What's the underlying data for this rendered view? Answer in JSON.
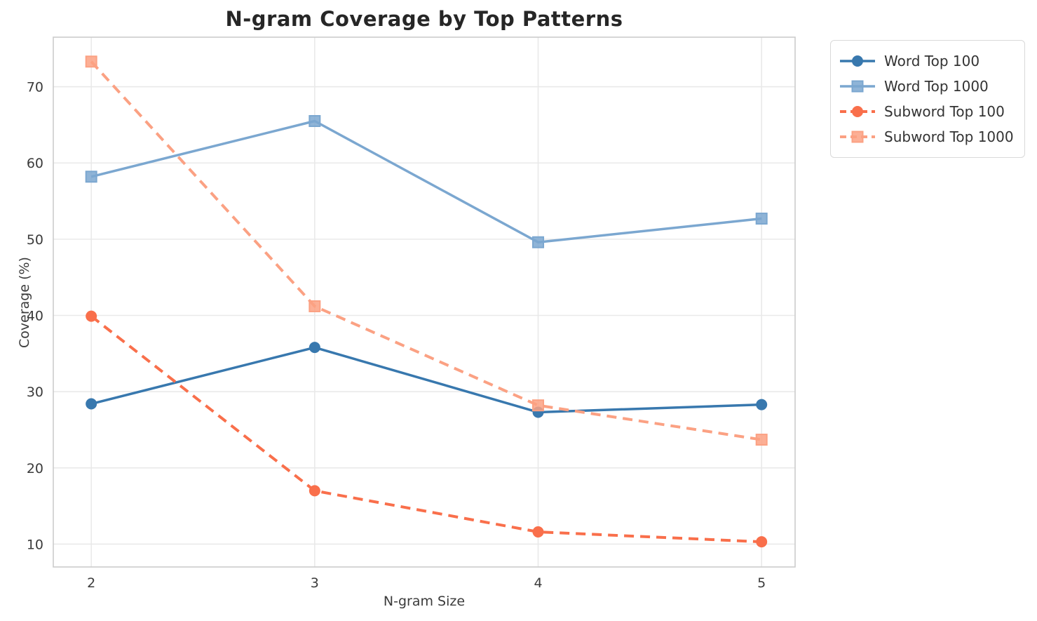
{
  "chart_data": {
    "type": "line",
    "title": "N-gram Coverage by Top Patterns",
    "xlabel": "N-gram Size",
    "ylabel": "Coverage (%)",
    "x": [
      2,
      3,
      4,
      5
    ],
    "x_ticks": [
      "2",
      "3",
      "4",
      "5"
    ],
    "y_ticks": [
      "10",
      "20",
      "30",
      "40",
      "50",
      "60",
      "70"
    ],
    "xlim": [
      1.83,
      5.15
    ],
    "ylim": [
      7,
      76.5
    ],
    "grid": true,
    "legend_position": "outside-upper-right",
    "series": [
      {
        "name": "Word Top 100",
        "values": [
          28.4,
          35.8,
          27.3,
          28.3
        ],
        "color": "#3878ae",
        "line_style": "solid",
        "marker": "circle"
      },
      {
        "name": "Word Top 1000",
        "values": [
          58.2,
          65.5,
          49.6,
          52.7
        ],
        "color": "#7ba7d0",
        "line_style": "solid",
        "marker": "square"
      },
      {
        "name": "Subword Top 100",
        "values": [
          39.9,
          17.0,
          11.6,
          10.3
        ],
        "color": "#f96f4b",
        "line_style": "dashed",
        "marker": "circle"
      },
      {
        "name": "Subword Top 1000",
        "values": [
          73.3,
          41.2,
          28.2,
          23.7
        ],
        "color": "#fba183",
        "line_style": "dashed",
        "marker": "square"
      }
    ],
    "colors": {
      "grid": "#e9e9e9",
      "spine": "#cccccc",
      "tick_label": "#3b3b3b",
      "title": "#262626"
    }
  }
}
